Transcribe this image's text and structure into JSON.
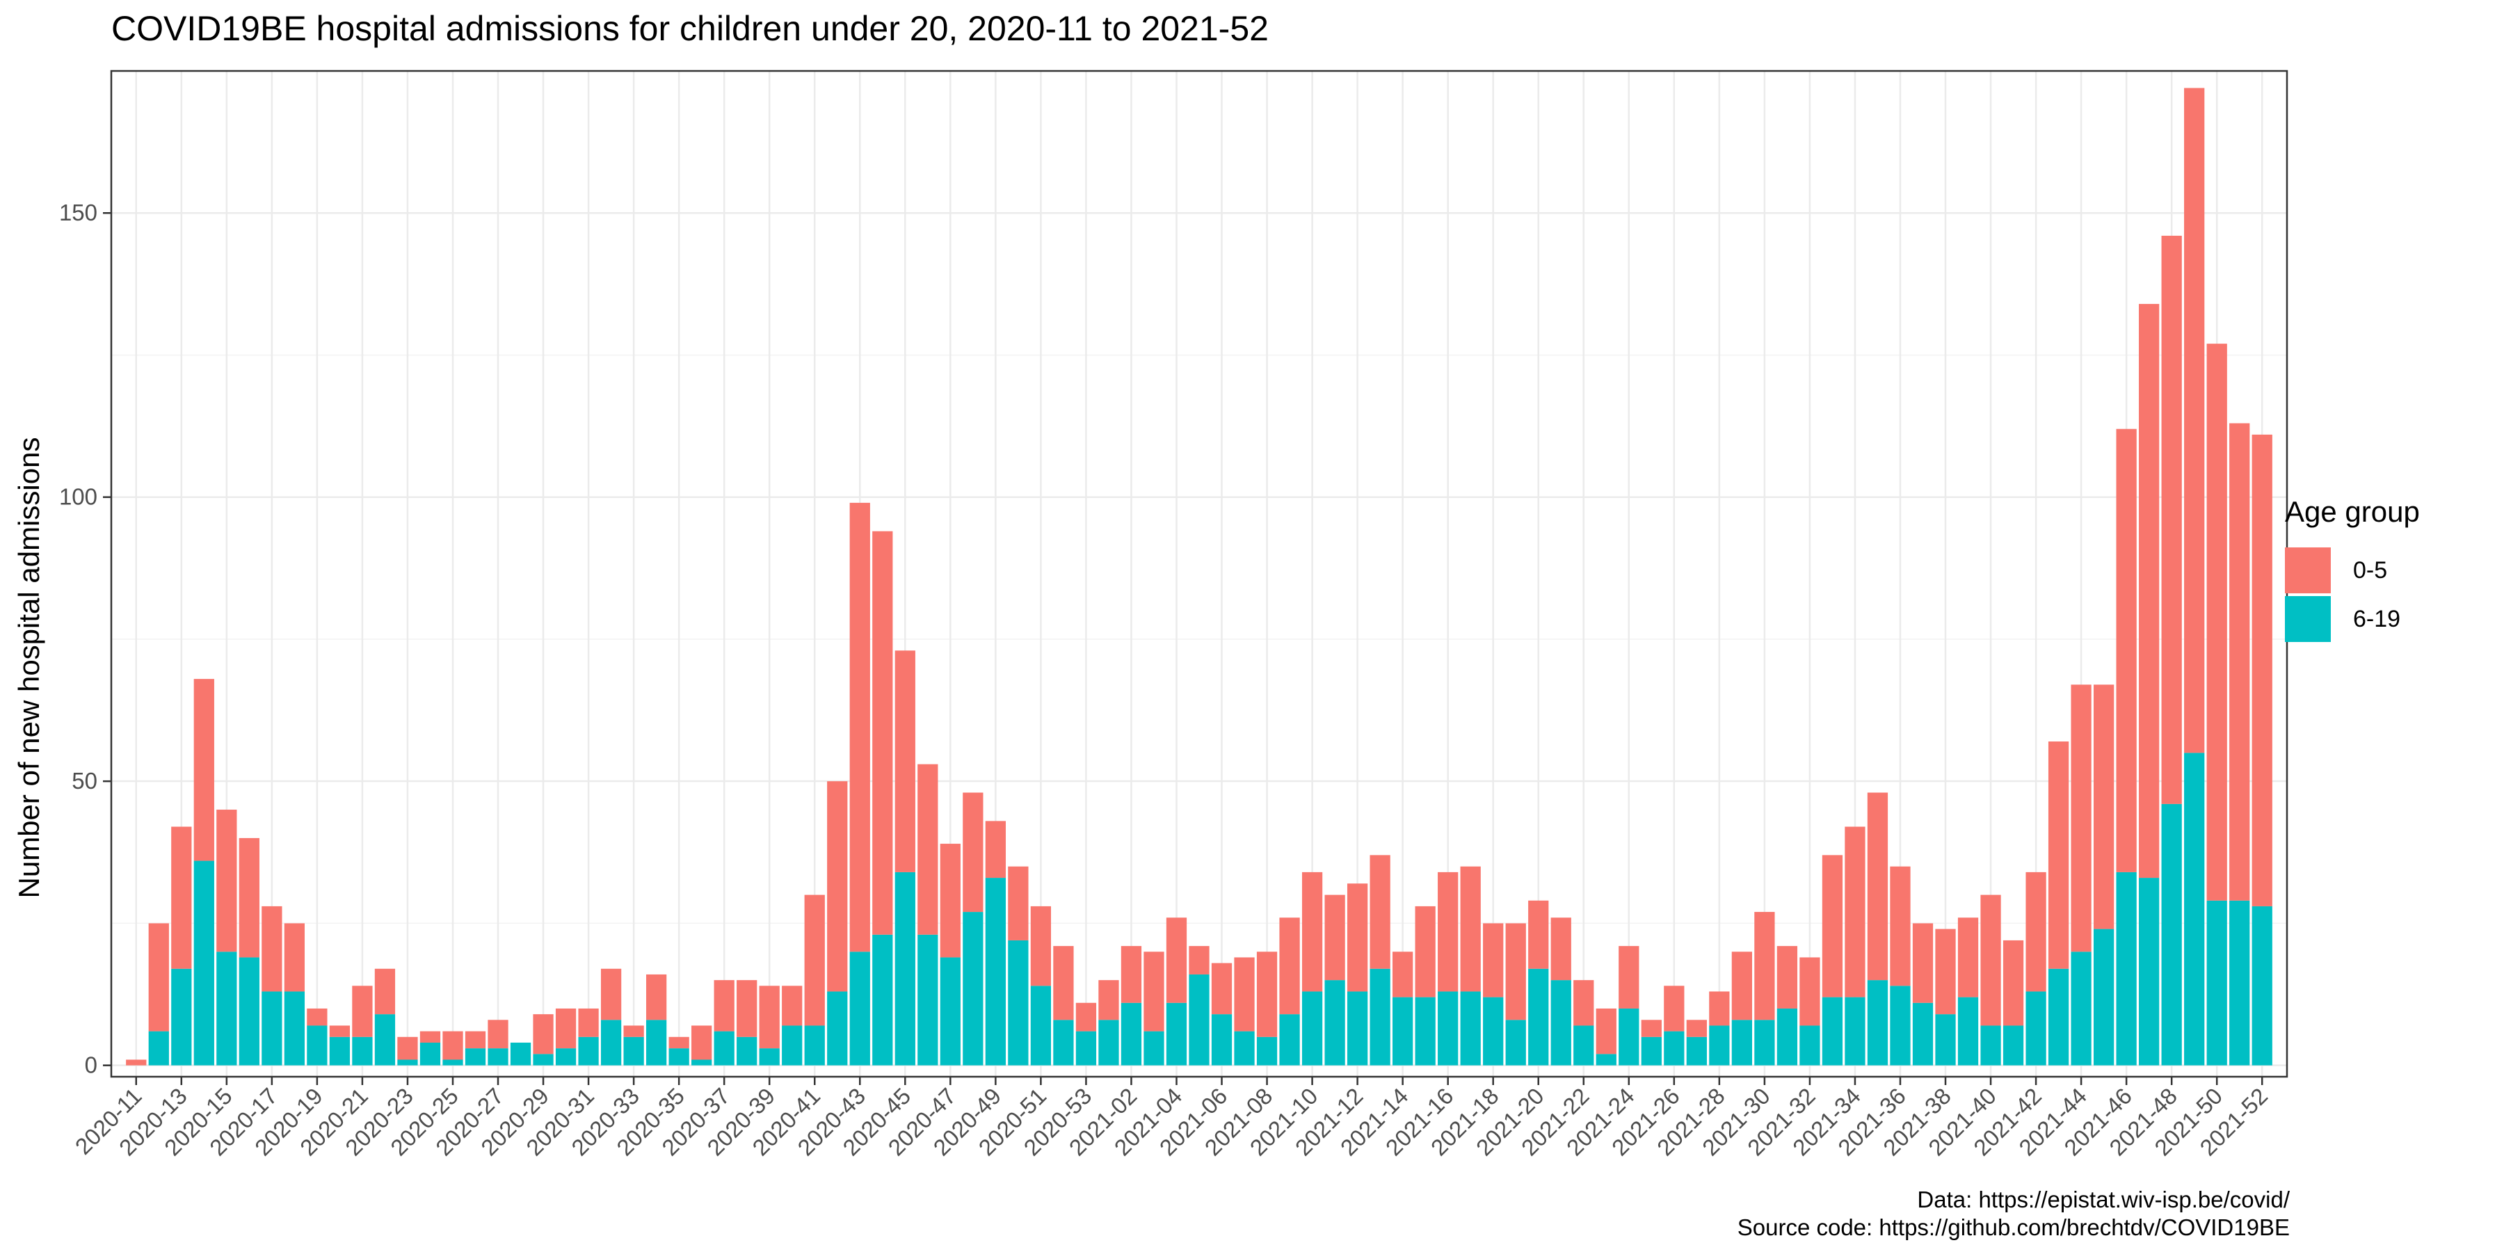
{
  "chart_data": {
    "type": "bar",
    "stacked": true,
    "title": "COVID19BE hospital admissions for children under 20, 2020-11 to 2021-52",
    "ylabel": "Number of new hospital admissions",
    "xlabel": "",
    "ylim": [
      -2,
      175
    ],
    "yticks": [
      0,
      50,
      100,
      150
    ],
    "grid": true,
    "legend": {
      "title": "Age group",
      "position": "right"
    },
    "categories": [
      "2020-11",
      "2020-12",
      "2020-13",
      "2020-14",
      "2020-15",
      "2020-16",
      "2020-17",
      "2020-18",
      "2020-19",
      "2020-20",
      "2020-21",
      "2020-22",
      "2020-23",
      "2020-24",
      "2020-25",
      "2020-26",
      "2020-27",
      "2020-28",
      "2020-29",
      "2020-30",
      "2020-31",
      "2020-32",
      "2020-33",
      "2020-34",
      "2020-35",
      "2020-36",
      "2020-37",
      "2020-38",
      "2020-39",
      "2020-40",
      "2020-41",
      "2020-42",
      "2020-43",
      "2020-44",
      "2020-45",
      "2020-46",
      "2020-47",
      "2020-48",
      "2020-49",
      "2020-50",
      "2020-51",
      "2020-52",
      "2020-53",
      "2021-01",
      "2021-02",
      "2021-03",
      "2021-04",
      "2021-05",
      "2021-06",
      "2021-07",
      "2021-08",
      "2021-09",
      "2021-10",
      "2021-11",
      "2021-12",
      "2021-13",
      "2021-14",
      "2021-15",
      "2021-16",
      "2021-17",
      "2021-18",
      "2021-19",
      "2021-20",
      "2021-21",
      "2021-22",
      "2021-23",
      "2021-24",
      "2021-25",
      "2021-26",
      "2021-27",
      "2021-28",
      "2021-29",
      "2021-30",
      "2021-31",
      "2021-32",
      "2021-33",
      "2021-34",
      "2021-35",
      "2021-36",
      "2021-37",
      "2021-38",
      "2021-39",
      "2021-40",
      "2021-41",
      "2021-42",
      "2021-43",
      "2021-44",
      "2021-45",
      "2021-46",
      "2021-47",
      "2021-48",
      "2021-49",
      "2021-50",
      "2021-51",
      "2021-52"
    ],
    "x_tick_labels": [
      "2020-11",
      "2020-13",
      "2020-15",
      "2020-17",
      "2020-19",
      "2020-21",
      "2020-23",
      "2020-25",
      "2020-27",
      "2020-29",
      "2020-31",
      "2020-33",
      "2020-35",
      "2020-37",
      "2020-39",
      "2020-41",
      "2020-43",
      "2020-45",
      "2020-47",
      "2020-49",
      "2020-51",
      "2020-53",
      "2021-02",
      "2021-04",
      "2021-06",
      "2021-08",
      "2021-10",
      "2021-12",
      "2021-14",
      "2021-16",
      "2021-18",
      "2021-20",
      "2021-22",
      "2021-24",
      "2021-26",
      "2021-28",
      "2021-30",
      "2021-32",
      "2021-34",
      "2021-36",
      "2021-38",
      "2021-40",
      "2021-42",
      "2021-44",
      "2021-46",
      "2021-48",
      "2021-50",
      "2021-52"
    ],
    "series": [
      {
        "name": "6-19",
        "color": "#00bfc4",
        "values": [
          0,
          6,
          17,
          36,
          20,
          19,
          13,
          13,
          7,
          5,
          5,
          9,
          1,
          4,
          1,
          3,
          3,
          4,
          2,
          3,
          5,
          8,
          5,
          8,
          3,
          1,
          6,
          5,
          3,
          7,
          7,
          13,
          20,
          23,
          34,
          23,
          19,
          27,
          33,
          22,
          14,
          8,
          6,
          8,
          11,
          6,
          11,
          16,
          9,
          6,
          5,
          9,
          13,
          15,
          13,
          17,
          12,
          12,
          13,
          13,
          12,
          8,
          17,
          15,
          7,
          2,
          10,
          5,
          6,
          5,
          7,
          8,
          8,
          10,
          7,
          12,
          12,
          15,
          14,
          11,
          9,
          12,
          7,
          7,
          13,
          17,
          20,
          24,
          34,
          33,
          46,
          55,
          29,
          29,
          28
        ]
      },
      {
        "name": "0-5",
        "color": "#f8766d",
        "values": [
          1,
          19,
          25,
          32,
          25,
          21,
          15,
          12,
          3,
          2,
          9,
          8,
          4,
          2,
          5,
          3,
          5,
          0,
          7,
          7,
          5,
          9,
          2,
          8,
          2,
          6,
          9,
          10,
          11,
          7,
          23,
          37,
          79,
          71,
          39,
          30,
          20,
          21,
          10,
          13,
          14,
          13,
          5,
          7,
          10,
          14,
          15,
          5,
          9,
          13,
          15,
          17,
          21,
          15,
          19,
          20,
          8,
          16,
          21,
          22,
          13,
          17,
          12,
          11,
          8,
          8,
          11,
          3,
          8,
          3,
          6,
          12,
          19,
          11,
          12,
          25,
          30,
          33,
          21,
          14,
          15,
          14,
          23,
          15,
          21,
          40,
          47,
          43,
          78,
          101,
          100,
          117,
          98,
          84,
          83
        ]
      }
    ]
  },
  "caption": {
    "data_line": "Data: https://epistat.wiv-isp.be/covid/",
    "source_line": "Source code: https://github.com/brechtdv/COVID19BE"
  }
}
